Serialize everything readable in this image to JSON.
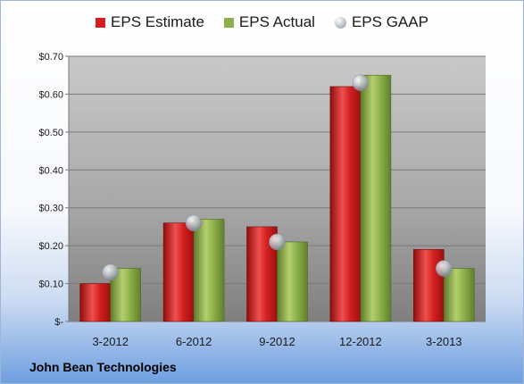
{
  "chart_data": {
    "type": "bar",
    "categories": [
      "3-2012",
      "6-2012",
      "9-2012",
      "12-2012",
      "3-2013"
    ],
    "series": [
      {
        "name": "EPS Estimate",
        "values": [
          0.1,
          0.26,
          0.25,
          0.62,
          0.19
        ],
        "color": "#d42020"
      },
      {
        "name": "EPS Actual",
        "values": [
          0.14,
          0.27,
          0.21,
          0.65,
          0.14
        ],
        "color": "#8db04a"
      },
      {
        "name": "EPS GAAP",
        "values": [
          0.13,
          0.26,
          0.21,
          0.63,
          0.14
        ],
        "color": "#b8bec8",
        "marker": "sphere"
      }
    ],
    "ylim": [
      0,
      0.7
    ],
    "yticks": [
      "$-",
      "$0.10",
      "$0.20",
      "$0.30",
      "$0.40",
      "$0.50",
      "$0.60",
      "$0.70"
    ],
    "legend_position": "top",
    "grid": true,
    "title": "",
    "xlabel": "",
    "ylabel": ""
  },
  "company": "John Bean Technologies"
}
